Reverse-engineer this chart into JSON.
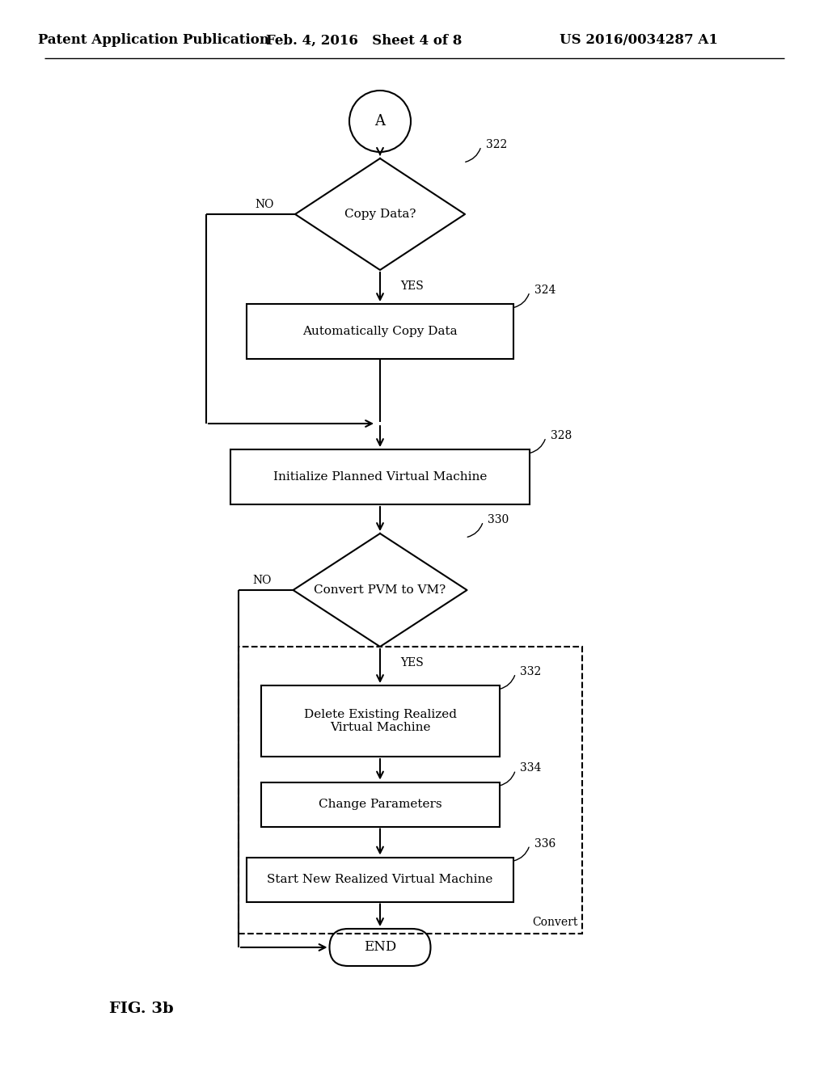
{
  "bg_color": "#ffffff",
  "header_left": "Patent Application Publication",
  "header_mid": "Feb. 4, 2016   Sheet 4 of 8",
  "header_right": "US 2016/0034287 A1",
  "footer_label": "FIG. 3b",
  "circle_A_label": "A",
  "diamond1_label": "Copy Data?",
  "diamond1_no": "NO",
  "diamond1_yes": "YES",
  "diamond1_ref": "322",
  "box1_label": "Automatically Copy Data",
  "box1_ref": "324",
  "box2_label": "Initialize Planned Virtual Machine",
  "box2_ref": "328",
  "diamond2_label": "Convert PVM to VM?",
  "diamond2_no": "NO",
  "diamond2_yes": "YES",
  "diamond2_ref": "330",
  "box3_label": "Delete Existing Realized\nVirtual Machine",
  "box3_ref": "332",
  "box4_label": "Change Parameters",
  "box4_ref": "334",
  "box5_label": "Start New Realized Virtual Machine",
  "box5_ref": "336",
  "convert_label": "Convert",
  "end_label": "END",
  "line_color": "#000000",
  "text_color": "#000000",
  "font_family": "DejaVu Serif"
}
